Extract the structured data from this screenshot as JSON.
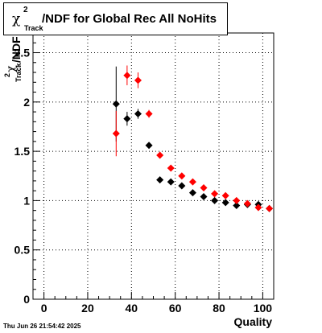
{
  "title": {
    "chi": "χ",
    "sup": "2",
    "sub": "Track",
    "rest": "/NDF for Global Rec All NoHits"
  },
  "ylabel": {
    "chi": "χ",
    "sup": "2",
    "sub": "Track",
    "rest": "/NDF"
  },
  "xlabel": "Quality",
  "timestamp": "Thu Jun 26 21:54:42 2025",
  "colors": {
    "series_black": "#000000",
    "series_red": "#ff0000"
  },
  "chart_data": {
    "type": "scatter",
    "title": "χ2 Track /NDF for Global Rec All NoHits",
    "xlabel": "Quality",
    "ylabel": "χ2 Track /NDF",
    "xlim": [
      -5,
      105
    ],
    "ylim": [
      0,
      2.7
    ],
    "xticks": [
      "0",
      "20",
      "40",
      "60",
      "80",
      "100"
    ],
    "yticks": [
      "0",
      "0.5",
      "1",
      "1.5",
      "2",
      "2.5"
    ],
    "grid": true,
    "series": [
      {
        "color": "#000000",
        "points": [
          {
            "x": 33,
            "y": 1.98,
            "yerr": 0.38
          },
          {
            "x": 38,
            "y": 1.83,
            "yerr": 0.07
          },
          {
            "x": 43,
            "y": 1.88,
            "yerr": 0.05
          },
          {
            "x": 48,
            "y": 1.56,
            "yerr": 0.02
          },
          {
            "x": 53,
            "y": 1.21,
            "yerr": 0.02
          },
          {
            "x": 58,
            "y": 1.19,
            "yerr": 0.02
          },
          {
            "x": 63,
            "y": 1.15,
            "yerr": 0.02
          },
          {
            "x": 68,
            "y": 1.08,
            "yerr": 0.02
          },
          {
            "x": 73,
            "y": 1.04,
            "yerr": 0.02
          },
          {
            "x": 78,
            "y": 1.0,
            "yerr": 0.02
          },
          {
            "x": 83,
            "y": 0.98,
            "yerr": 0.02
          },
          {
            "x": 88,
            "y": 0.95,
            "yerr": 0.02
          },
          {
            "x": 93,
            "y": 0.96,
            "yerr": 0.02
          },
          {
            "x": 98,
            "y": 0.96,
            "yerr": 0.02
          },
          {
            "x": 103,
            "y": 0.92,
            "yerr": 0.02
          }
        ]
      },
      {
        "color": "#ff0000",
        "points": [
          {
            "x": 33,
            "y": 1.68,
            "yerr": 0.23
          },
          {
            "x": 38,
            "y": 2.27,
            "yerr": 0.1
          },
          {
            "x": 43,
            "y": 2.22,
            "yerr": 0.08
          },
          {
            "x": 48,
            "y": 1.88,
            "yerr": 0.04
          },
          {
            "x": 53,
            "y": 1.46,
            "yerr": 0.03
          },
          {
            "x": 58,
            "y": 1.33,
            "yerr": 0.02
          },
          {
            "x": 63,
            "y": 1.25,
            "yerr": 0.02
          },
          {
            "x": 68,
            "y": 1.19,
            "yerr": 0.02
          },
          {
            "x": 73,
            "y": 1.13,
            "yerr": 0.02
          },
          {
            "x": 78,
            "y": 1.07,
            "yerr": 0.02
          },
          {
            "x": 83,
            "y": 1.05,
            "yerr": 0.02
          },
          {
            "x": 88,
            "y": 1.0,
            "yerr": 0.02
          },
          {
            "x": 93,
            "y": 0.97,
            "yerr": 0.02
          },
          {
            "x": 98,
            "y": 0.93,
            "yerr": 0.02
          },
          {
            "x": 103,
            "y": 0.92,
            "yerr": 0.02
          }
        ]
      }
    ]
  }
}
